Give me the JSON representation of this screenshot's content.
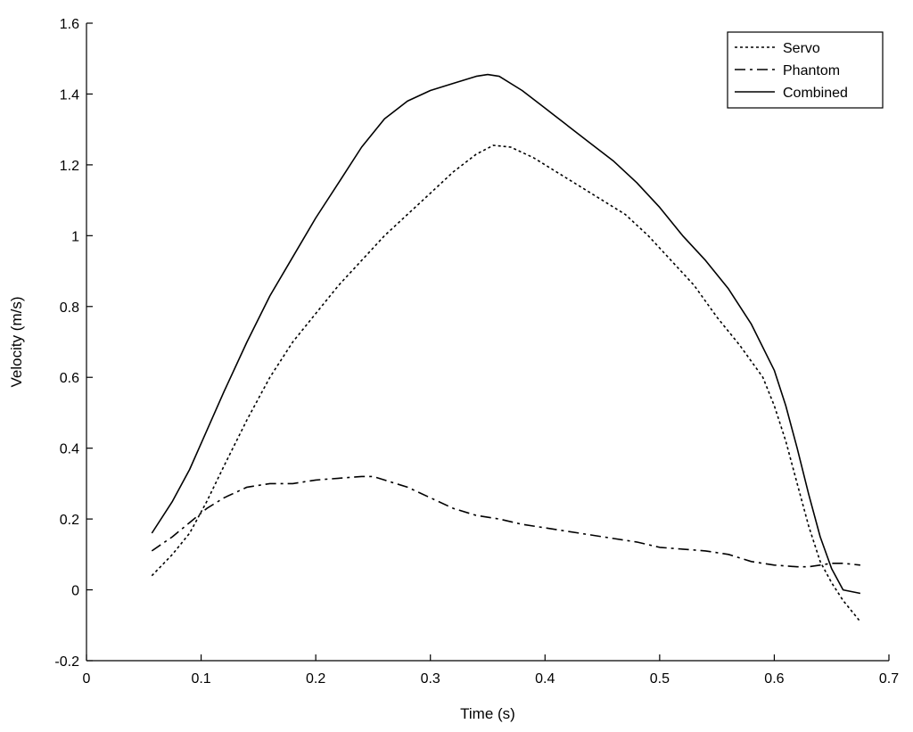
{
  "chart_data": {
    "type": "line",
    "title": "",
    "xlabel": "Time (s)",
    "ylabel": "Velocity (m/s)",
    "xlim": [
      0,
      0.7
    ],
    "ylim": [
      -0.2,
      1.6
    ],
    "xticks": [
      0,
      0.1,
      0.2,
      0.3,
      0.4,
      0.5,
      0.6,
      0.7
    ],
    "xtick_labels": [
      "0",
      "0.1",
      "0.2",
      "0.3",
      "0.4",
      "0.5",
      "0.6",
      "0.7"
    ],
    "yticks": [
      -0.2,
      0,
      0.2,
      0.4,
      0.6,
      0.8,
      1,
      1.2,
      1.4,
      1.6
    ],
    "ytick_labels": [
      "-0.2",
      "0",
      "0.2",
      "0.4",
      "0.6",
      "0.8",
      "1",
      "1.2",
      "1.4",
      "1.6"
    ],
    "grid": false,
    "legend_position": "top-right",
    "series": [
      {
        "name": "Servo",
        "style": "dotted",
        "color": "#000000",
        "x": [
          0.057,
          0.075,
          0.09,
          0.105,
          0.12,
          0.14,
          0.16,
          0.18,
          0.2,
          0.22,
          0.24,
          0.26,
          0.28,
          0.3,
          0.32,
          0.34,
          0.355,
          0.37,
          0.39,
          0.41,
          0.43,
          0.45,
          0.47,
          0.49,
          0.51,
          0.53,
          0.55,
          0.57,
          0.59,
          0.6,
          0.61,
          0.62,
          0.63,
          0.64,
          0.65,
          0.66,
          0.675
        ],
        "y": [
          0.04,
          0.1,
          0.16,
          0.25,
          0.35,
          0.48,
          0.6,
          0.7,
          0.78,
          0.86,
          0.93,
          1.0,
          1.06,
          1.12,
          1.18,
          1.23,
          1.255,
          1.25,
          1.22,
          1.18,
          1.14,
          1.1,
          1.06,
          1.0,
          0.93,
          0.86,
          0.77,
          0.69,
          0.6,
          0.52,
          0.42,
          0.3,
          0.18,
          0.08,
          0.02,
          -0.03,
          -0.09
        ]
      },
      {
        "name": "Phantom",
        "style": "dash-dot",
        "color": "#000000",
        "x": [
          0.057,
          0.075,
          0.09,
          0.105,
          0.12,
          0.14,
          0.16,
          0.18,
          0.2,
          0.22,
          0.24,
          0.25,
          0.26,
          0.28,
          0.3,
          0.32,
          0.34,
          0.36,
          0.38,
          0.4,
          0.42,
          0.44,
          0.46,
          0.48,
          0.5,
          0.52,
          0.54,
          0.56,
          0.58,
          0.6,
          0.62,
          0.63,
          0.64,
          0.65,
          0.66,
          0.675
        ],
        "y": [
          0.11,
          0.15,
          0.19,
          0.23,
          0.26,
          0.29,
          0.3,
          0.3,
          0.31,
          0.315,
          0.32,
          0.32,
          0.31,
          0.29,
          0.26,
          0.23,
          0.21,
          0.2,
          0.185,
          0.175,
          0.165,
          0.155,
          0.145,
          0.135,
          0.12,
          0.115,
          0.11,
          0.1,
          0.08,
          0.07,
          0.065,
          0.065,
          0.07,
          0.075,
          0.075,
          0.07
        ]
      },
      {
        "name": "Combined",
        "style": "solid",
        "color": "#000000",
        "x": [
          0.057,
          0.075,
          0.09,
          0.105,
          0.12,
          0.14,
          0.16,
          0.18,
          0.2,
          0.22,
          0.24,
          0.26,
          0.28,
          0.3,
          0.32,
          0.34,
          0.35,
          0.36,
          0.38,
          0.4,
          0.42,
          0.44,
          0.46,
          0.48,
          0.5,
          0.52,
          0.54,
          0.56,
          0.58,
          0.6,
          0.61,
          0.62,
          0.63,
          0.64,
          0.65,
          0.66,
          0.675
        ],
        "y": [
          0.16,
          0.25,
          0.34,
          0.45,
          0.56,
          0.7,
          0.83,
          0.94,
          1.05,
          1.15,
          1.25,
          1.33,
          1.38,
          1.41,
          1.43,
          1.45,
          1.455,
          1.45,
          1.41,
          1.36,
          1.31,
          1.26,
          1.21,
          1.15,
          1.08,
          1.0,
          0.93,
          0.85,
          0.75,
          0.62,
          0.52,
          0.4,
          0.27,
          0.15,
          0.06,
          0.0,
          -0.01
        ]
      }
    ]
  }
}
